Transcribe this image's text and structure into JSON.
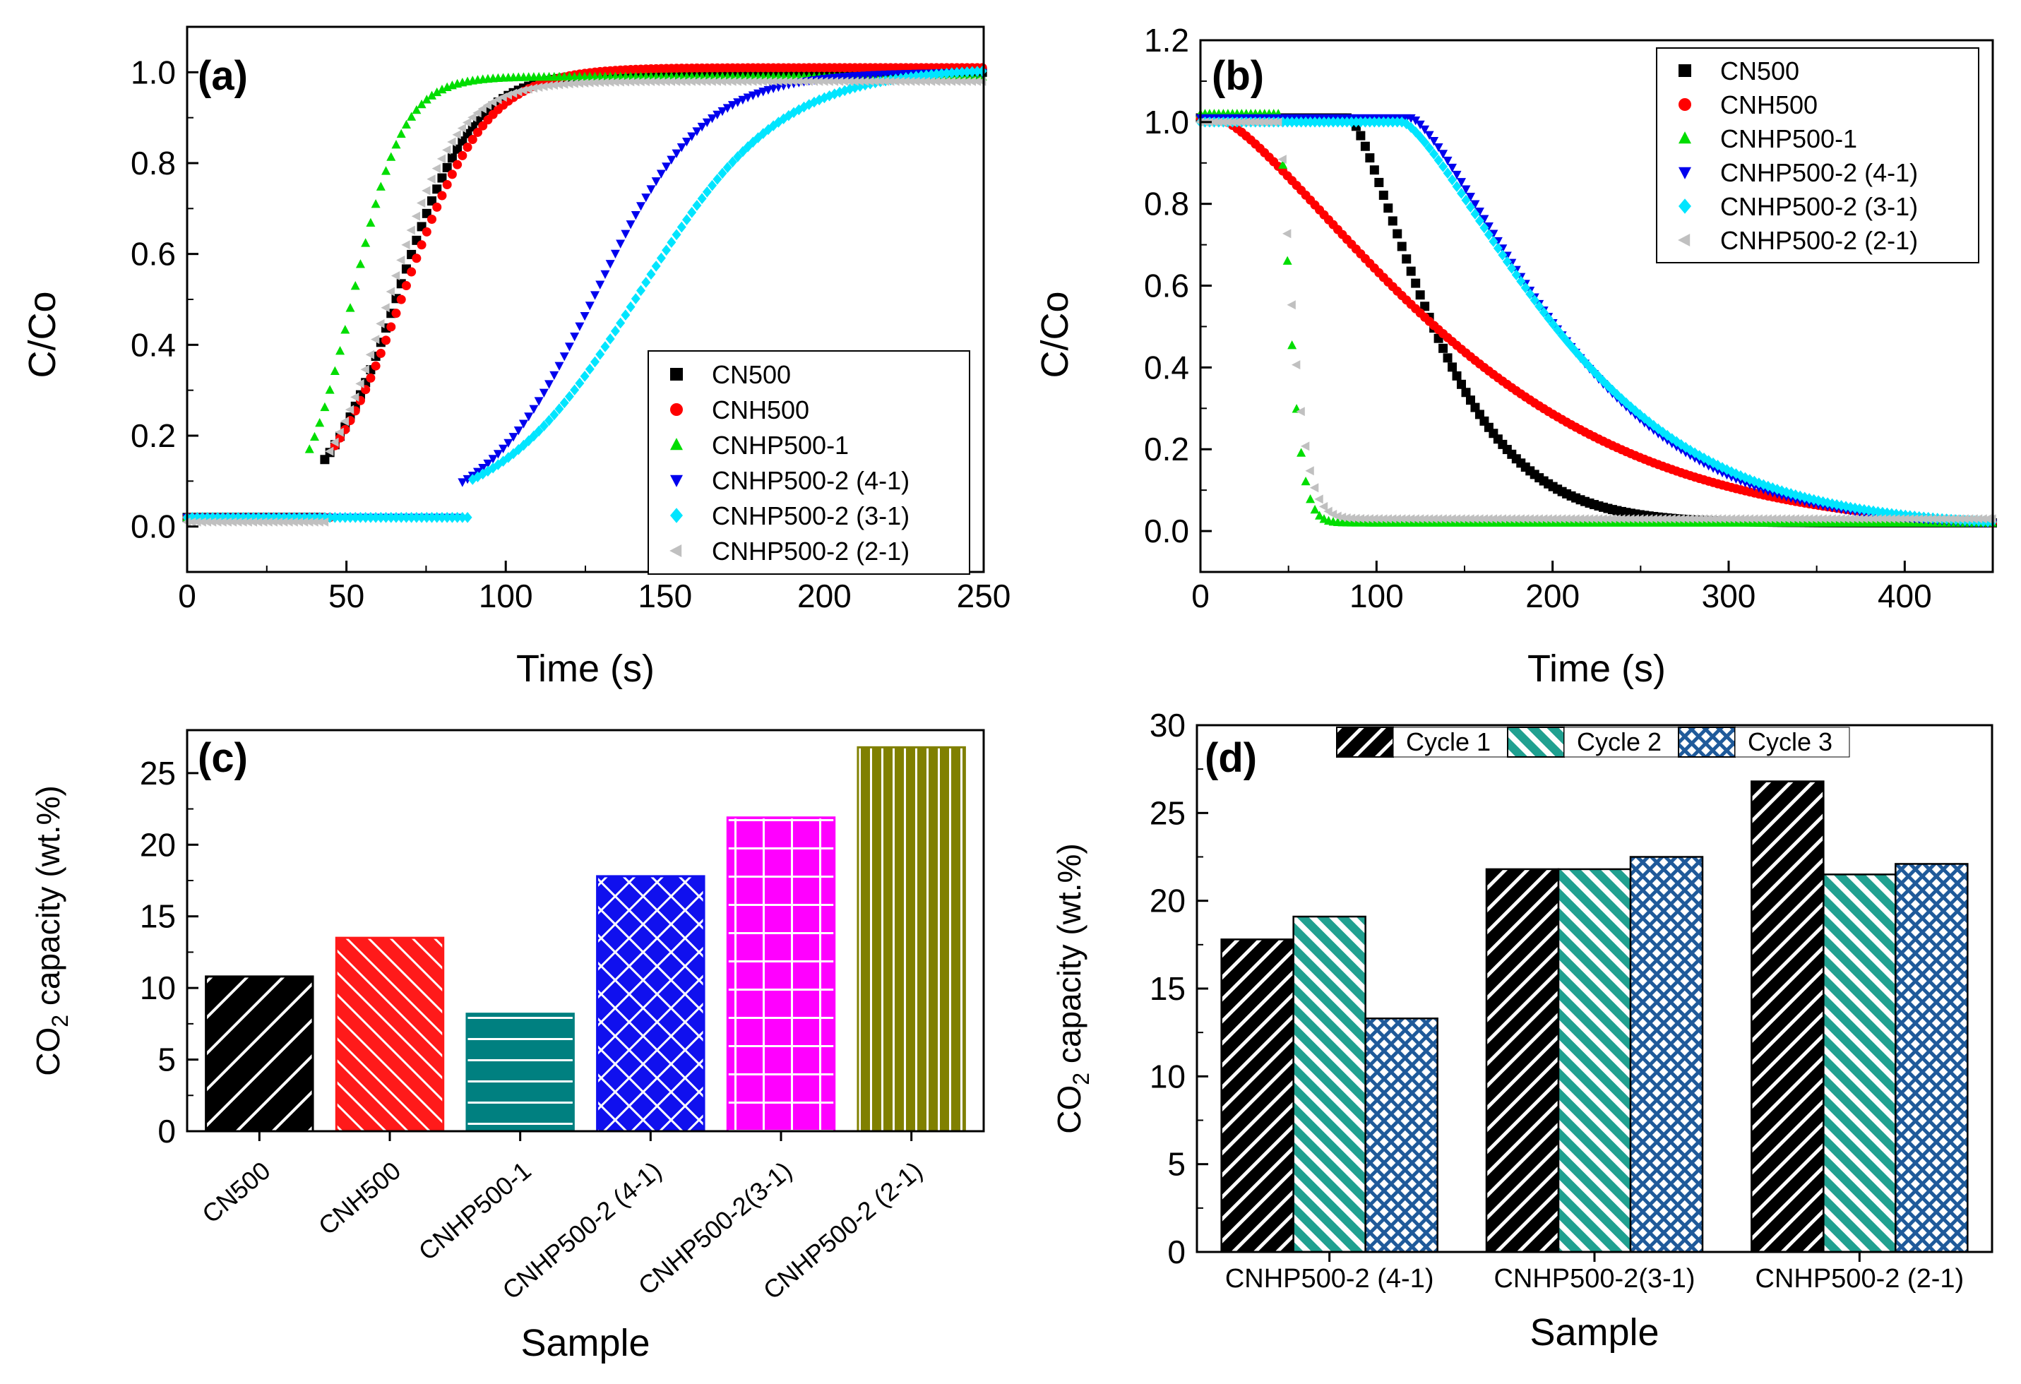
{
  "chart_data": [
    {
      "panel": "(a)",
      "type": "scatter",
      "title": "",
      "xlabel": "Time (s)",
      "ylabel": "C/Co",
      "xlim": [
        0,
        250
      ],
      "ylim": [
        -0.1,
        1.1
      ],
      "xticks": [
        0,
        50,
        100,
        150,
        200,
        250
      ],
      "yticks": [
        0.0,
        0.2,
        0.4,
        0.6,
        0.8,
        1.0
      ],
      "legend_position": "bottom-right",
      "series": [
        {
          "name": "CN500",
          "marker": "square",
          "color": "#000000",
          "t_start": 43,
          "midpoint": 66,
          "width": 12,
          "baseline": 0.02,
          "plateau": 1.0
        },
        {
          "name": "CNH500",
          "marker": "circle",
          "color": "#ff0000",
          "t_start": 45,
          "midpoint": 68,
          "width": 13,
          "baseline": 0.02,
          "plateau": 1.01
        },
        {
          "name": "CNHP500-1",
          "marker": "triangle-up",
          "color": "#00dd00",
          "t_start": 37,
          "midpoint": 52,
          "width": 8,
          "baseline": 0.02,
          "plateau": 0.99
        },
        {
          "name": "CNHP500-2 (4-1)",
          "marker": "triangle-down",
          "color": "#0000ee",
          "t_start": 85,
          "midpoint": 128,
          "width": 17,
          "baseline": 0.02,
          "plateau": 1.0
        },
        {
          "name": "CNHP500-2 (3-1)",
          "marker": "diamond",
          "color": "#00e5ff",
          "t_start": 88,
          "midpoint": 142,
          "width": 22,
          "baseline": 0.02,
          "plateau": 1.01
        },
        {
          "name": "CNHP500-2 (2-1)",
          "marker": "triangle-left",
          "color": "#c0c0c0",
          "t_start": 44,
          "midpoint": 63,
          "width": 11,
          "baseline": 0.01,
          "plateau": 0.98
        }
      ]
    },
    {
      "panel": "(b)",
      "type": "scatter",
      "title": "",
      "xlabel": "Time (s)",
      "ylabel": "C/Co",
      "xlim": [
        0,
        450
      ],
      "ylim": [
        -0.1,
        1.2
      ],
      "xticks": [
        0,
        100,
        200,
        300,
        400
      ],
      "yticks": [
        0.0,
        0.2,
        0.4,
        0.6,
        0.8,
        1.0,
        1.2
      ],
      "legend_position": "top-right",
      "series": [
        {
          "name": "CN500",
          "marker": "square",
          "color": "#000000",
          "plateau_until": 85,
          "start_value": 1.01,
          "tau": 60,
          "floor": 0.02
        },
        {
          "name": "CNH500",
          "marker": "circle",
          "color": "#ff0000",
          "plateau_until": 10,
          "start_value": 1.01,
          "tau": 160,
          "floor": 0.0
        },
        {
          "name": "CNHP500-1",
          "marker": "triangle-up",
          "color": "#00dd00",
          "plateau_until": 45,
          "start_value": 1.02,
          "tau": 8,
          "floor": 0.02
        },
        {
          "name": "CNHP500-2 (4-1)",
          "marker": "triangle-down",
          "color": "#0000ee",
          "plateau_until": 120,
          "start_value": 1.01,
          "tau": 105,
          "floor": 0.01
        },
        {
          "name": "CNHP500-2 (3-1)",
          "marker": "diamond",
          "color": "#00e5ff",
          "plateau_until": 115,
          "start_value": 1.0,
          "tau": 112,
          "floor": 0.01
        },
        {
          "name": "CNHP500-2 (2-1)",
          "marker": "triangle-left",
          "color": "#c0c0c0",
          "plateau_until": 45,
          "start_value": 1.0,
          "tau": 10,
          "floor": 0.03
        }
      ]
    },
    {
      "panel": "(c)",
      "type": "bar",
      "title": "",
      "xlabel": "Sample",
      "ylabel": "CO2 capacity (wt.%)",
      "ylabel_main": "CO",
      "ylabel_sub": "2",
      "ylabel_rest": " capacity (wt.%)",
      "ylim": [
        0,
        28
      ],
      "yticks": [
        0,
        5,
        10,
        15,
        20,
        25
      ],
      "categories": [
        "CN500",
        "CNH500",
        "CNHP500-1",
        "CNHP500-2 (4-1)",
        "CNHP500-2(3-1)",
        "CNHP500-2 (2-1)"
      ],
      "values": [
        10.8,
        13.5,
        8.2,
        17.8,
        21.9,
        26.8
      ],
      "colors": [
        "#000000",
        "#ff1a1a",
        "#008080",
        "#1010ee",
        "#ff00ff",
        "#808000"
      ],
      "patterns": [
        "diag-fwd",
        "diag-fwd-dense",
        "horizontal",
        "crosshatch",
        "grid",
        "vertical"
      ]
    },
    {
      "panel": "(d)",
      "type": "bar",
      "title": "",
      "xlabel": "Sample",
      "ylabel": "CO2 capacity (wt.%)",
      "ylabel_main": "CO",
      "ylabel_sub": "2",
      "ylabel_rest": " capacity (wt.%)",
      "ylim": [
        0,
        30
      ],
      "yticks": [
        0,
        5,
        10,
        15,
        20,
        25,
        30
      ],
      "legend_position": "top-center",
      "categories": [
        "CNHP500-2 (4-1)",
        "CNHP500-2(3-1)",
        "CNHP500-2 (2-1)"
      ],
      "series": [
        {
          "name": "Cycle 1",
          "values": [
            17.8,
            21.8,
            26.8
          ],
          "color": "#000000",
          "pattern": "hatch-black"
        },
        {
          "name": "Cycle 2",
          "values": [
            19.1,
            21.8,
            21.5
          ],
          "color": "#20a090",
          "pattern": "hatch-teal"
        },
        {
          "name": "Cycle 3",
          "values": [
            13.3,
            22.5,
            22.1
          ],
          "color": "#1f5a9a",
          "pattern": "crosshatch-blue"
        }
      ]
    }
  ]
}
